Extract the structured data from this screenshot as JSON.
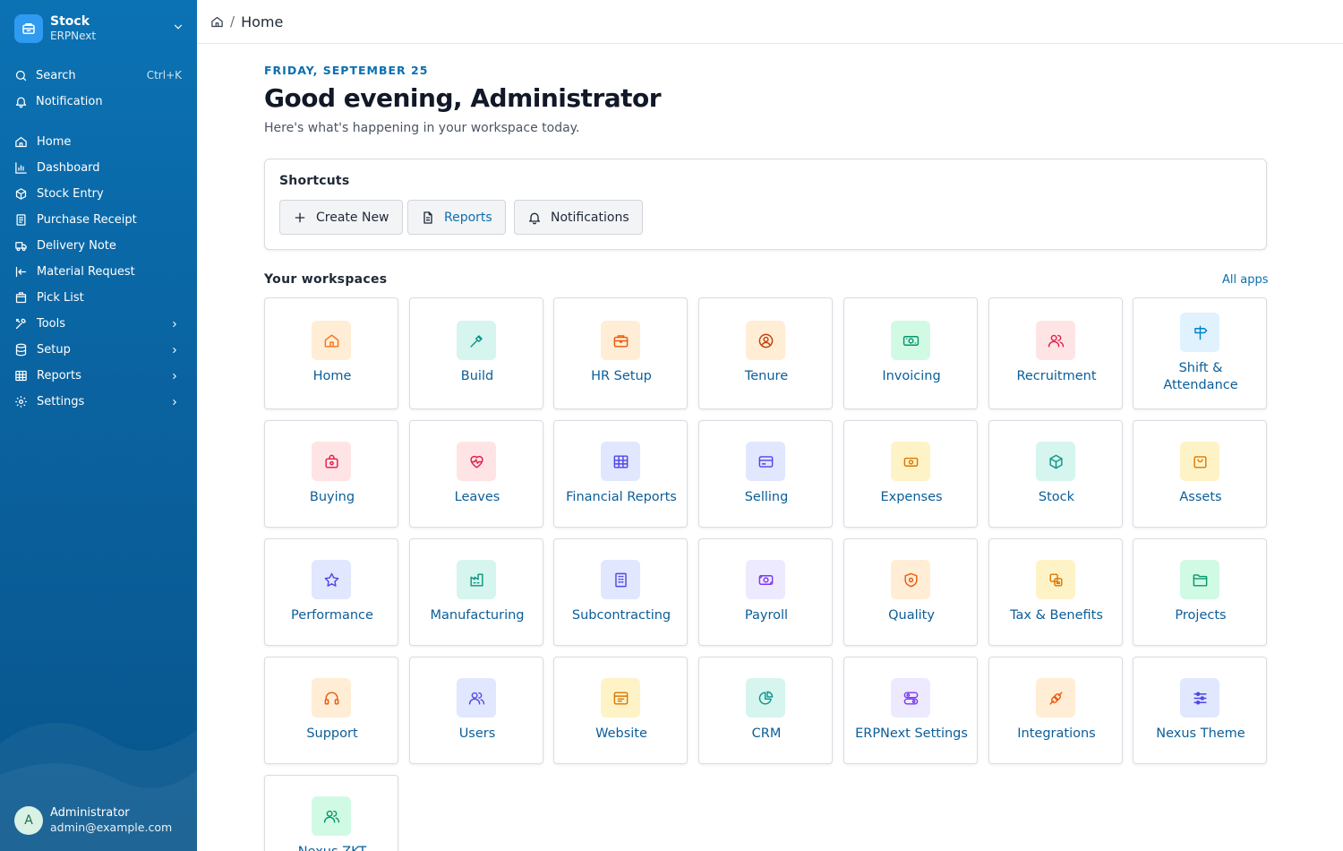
{
  "sidebar": {
    "app_title": "Stock",
    "app_subtitle": "ERPNext",
    "search_label": "Search",
    "search_shortcut": "Ctrl+K",
    "notification_label": "Notification",
    "items": [
      {
        "label": "Home",
        "icon": "home-icon",
        "has_children": false
      },
      {
        "label": "Dashboard",
        "icon": "chart-icon",
        "has_children": false
      },
      {
        "label": "Stock Entry",
        "icon": "box-icon",
        "has_children": false
      },
      {
        "label": "Purchase Receipt",
        "icon": "receipt-icon",
        "has_children": false
      },
      {
        "label": "Delivery Note",
        "icon": "truck-icon",
        "has_children": false
      },
      {
        "label": "Material Request",
        "icon": "arrow-left-icon",
        "has_children": false
      },
      {
        "label": "Pick List",
        "icon": "package-icon",
        "has_children": false
      },
      {
        "label": "Tools",
        "icon": "tools-icon",
        "has_children": true
      },
      {
        "label": "Setup",
        "icon": "database-icon",
        "has_children": true
      },
      {
        "label": "Reports",
        "icon": "table-icon",
        "has_children": true
      },
      {
        "label": "Settings",
        "icon": "gear-icon",
        "has_children": true
      }
    ],
    "user": {
      "initial": "A",
      "name": "Administrator",
      "email": "admin@example.com"
    }
  },
  "topbar": {
    "breadcrumb_separator": "/",
    "current": "Home"
  },
  "main": {
    "date": "FRIDAY, SEPTEMBER 25",
    "greeting": "Good evening, Administrator",
    "subtitle": "Here's what's happening in your workspace today.",
    "shortcuts": {
      "title": "Shortcuts",
      "buttons": [
        {
          "label": "Create New",
          "icon": "plus-icon"
        },
        {
          "label": "Reports",
          "icon": "document-icon"
        },
        {
          "label": "Notifications",
          "icon": "bell-icon"
        }
      ]
    },
    "workspaces_title": "Your workspaces",
    "all_apps_label": "All apps",
    "workspaces": [
      {
        "label": "Home",
        "icon": "home-icon",
        "color": "#f97316",
        "bg": "#ffedd5"
      },
      {
        "label": "Build",
        "icon": "hammer-icon",
        "color": "#0d9488",
        "bg": "#d5f5ee"
      },
      {
        "label": "HR Setup",
        "icon": "briefcase-icon",
        "color": "#ea580c",
        "bg": "#ffedd5"
      },
      {
        "label": "Tenure",
        "icon": "user-circle-icon",
        "color": "#c2410c",
        "bg": "#ffedd5"
      },
      {
        "label": "Invoicing",
        "icon": "banknote-icon",
        "color": "#059669",
        "bg": "#d1fae5"
      },
      {
        "label": "Recruitment",
        "icon": "users-icon",
        "color": "#e11d48",
        "bg": "#ffe4e6"
      },
      {
        "label": "Shift & Attendance",
        "icon": "signpost-icon",
        "color": "#0284c7",
        "bg": "#e0f2fe"
      },
      {
        "label": "Buying",
        "icon": "shopping-bag-icon",
        "color": "#e11d48",
        "bg": "#ffe4e6"
      },
      {
        "label": "Leaves",
        "icon": "heart-pulse-icon",
        "color": "#e11d48",
        "bg": "#ffe4e6"
      },
      {
        "label": "Financial Reports",
        "icon": "table-icon",
        "color": "#4f46e5",
        "bg": "#e0e7ff"
      },
      {
        "label": "Selling",
        "icon": "card-icon",
        "color": "#4f46e5",
        "bg": "#e0e7ff"
      },
      {
        "label": "Expenses",
        "icon": "cash-icon",
        "color": "#d97706",
        "bg": "#fef3c7"
      },
      {
        "label": "Stock",
        "icon": "cube-icon",
        "color": "#0d9488",
        "bg": "#d5f5ee"
      },
      {
        "label": "Assets",
        "icon": "bag-icon",
        "color": "#d97706",
        "bg": "#fef3c7"
      },
      {
        "label": "Performance",
        "icon": "star-icon",
        "color": "#4f46e5",
        "bg": "#e0e7ff"
      },
      {
        "label": "Manufacturing",
        "icon": "factory-icon",
        "color": "#0d9488",
        "bg": "#d5f5ee"
      },
      {
        "label": "Subcontracting",
        "icon": "building-icon",
        "color": "#4f46e5",
        "bg": "#e0e7ff"
      },
      {
        "label": "Payroll",
        "icon": "money-icon",
        "color": "#7c3aed",
        "bg": "#ede9fe"
      },
      {
        "label": "Quality",
        "icon": "shield-icon",
        "color": "#ea580c",
        "bg": "#ffedd5"
      },
      {
        "label": "Tax & Benefits",
        "icon": "coins-icon",
        "color": "#d97706",
        "bg": "#fef3c7"
      },
      {
        "label": "Projects",
        "icon": "folder-icon",
        "color": "#059669",
        "bg": "#d1fae5"
      },
      {
        "label": "Support",
        "icon": "headset-icon",
        "color": "#ea580c",
        "bg": "#ffedd5"
      },
      {
        "label": "Users",
        "icon": "users-icon",
        "color": "#4f46e5",
        "bg": "#e0e7ff"
      },
      {
        "label": "Website",
        "icon": "browser-icon",
        "color": "#d97706",
        "bg": "#fef3c7"
      },
      {
        "label": "CRM",
        "icon": "pie-chart-icon",
        "color": "#0d9488",
        "bg": "#d5f5ee"
      },
      {
        "label": "ERPNext Settings",
        "icon": "toggle-icon",
        "color": "#7c3aed",
        "bg": "#ede9fe"
      },
      {
        "label": "Integrations",
        "icon": "plug-icon",
        "color": "#ea580c",
        "bg": "#ffedd5"
      },
      {
        "label": "Nexus Theme",
        "icon": "sliders-icon",
        "color": "#4f46e5",
        "bg": "#e0e7ff"
      },
      {
        "label": "Nexus ZKT",
        "icon": "users-icon",
        "color": "#059669",
        "bg": "#d1fae5"
      }
    ]
  }
}
